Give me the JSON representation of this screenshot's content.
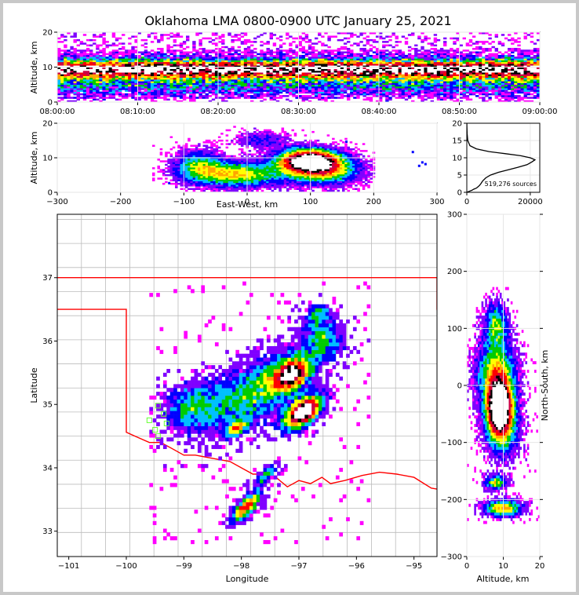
{
  "chart_data": {
    "title": "Oklahoma LMA 0800-0900 UTC January 25, 2021",
    "colors": {
      "scale": [
        "#ff00ff",
        "#7f00ff",
        "#0000ff",
        "#00bfff",
        "#00cc00",
        "#ffff00",
        "#ffa500",
        "#ff0000",
        "#cc0044",
        "#000000",
        "#ffffff"
      ],
      "state_line": "#ff0000",
      "county_line": "#bbbbbb",
      "station": "#66ff33"
    },
    "panels": [
      {
        "id": "time_altitude",
        "type": "heatmap",
        "ylabel": "Altitude, km",
        "xlim": [
          "08:00:00",
          "09:00:00"
        ],
        "ylim": [
          0,
          20
        ],
        "xticks": [
          "08:00:00",
          "08:10:00",
          "08:20:00",
          "08:30:00",
          "08:40:00",
          "08:50:00",
          "09:00:00"
        ],
        "yticks": [
          "0",
          "10",
          "20"
        ],
        "grid": true
      },
      {
        "id": "ew_altitude",
        "type": "heatmap",
        "xlabel": "East-West, km",
        "ylabel": "Altitude, km",
        "xlim": [
          -300,
          300
        ],
        "ylim": [
          0,
          20
        ],
        "xticks": [
          "−300",
          "−200",
          "−100",
          "0",
          "100",
          "200",
          "300"
        ],
        "yticks": [
          "0",
          "10",
          "20"
        ],
        "grid": true
      },
      {
        "id": "altitude_histogram",
        "type": "line",
        "xlim": [
          0,
          23000
        ],
        "ylim": [
          0,
          20
        ],
        "xticks": [
          "0",
          "20000"
        ],
        "yticks": [
          "0",
          "5",
          "10",
          "15",
          "20"
        ],
        "annotation": "519,276 sources",
        "series": [
          {
            "x": [
              0,
              800,
              1600,
              2200,
              3000,
              3500,
              4000,
              4500,
              5000,
              6000,
              7500,
              10000,
              13000,
              16000,
              19000,
              20500,
              21500,
              20000,
              17000,
              12000,
              7000,
              3000,
              1000,
              300,
              100,
              0
            ],
            "y": [
              0,
              0.3,
              0.6,
              0.9,
              1.2,
              1.6,
              2.0,
              2.6,
              3.3,
              4.2,
              5.0,
              5.8,
              6.5,
              7.2,
              8.0,
              8.8,
              9.4,
              10.0,
              10.6,
              11.2,
              11.8,
              12.6,
              13.5,
              15.0,
              17.0,
              20.0
            ]
          }
        ],
        "grid": true
      },
      {
        "id": "plan_view",
        "type": "heatmap",
        "xlabel": "Longitude",
        "ylabel": "Latitude",
        "xlim": [
          -101.2,
          -94.6
        ],
        "ylim": [
          32.6,
          38.0
        ],
        "xticks": [
          "−101",
          "−100",
          "−99",
          "−98",
          "−97",
          "−96",
          "−95"
        ],
        "yticks": [
          "33",
          "34",
          "35",
          "36",
          "37"
        ],
        "grid": false
      },
      {
        "id": "altitude_ns",
        "type": "heatmap",
        "xlabel": "Altitude, km",
        "ylabel": "North-South, km",
        "xlim": [
          0,
          20
        ],
        "ylim": [
          -300,
          300
        ],
        "xticks": [
          "0",
          "10",
          "20"
        ],
        "yticks": [
          "−300",
          "−200",
          "−100",
          "0",
          "100",
          "200",
          "300"
        ],
        "grid": true
      }
    ]
  }
}
